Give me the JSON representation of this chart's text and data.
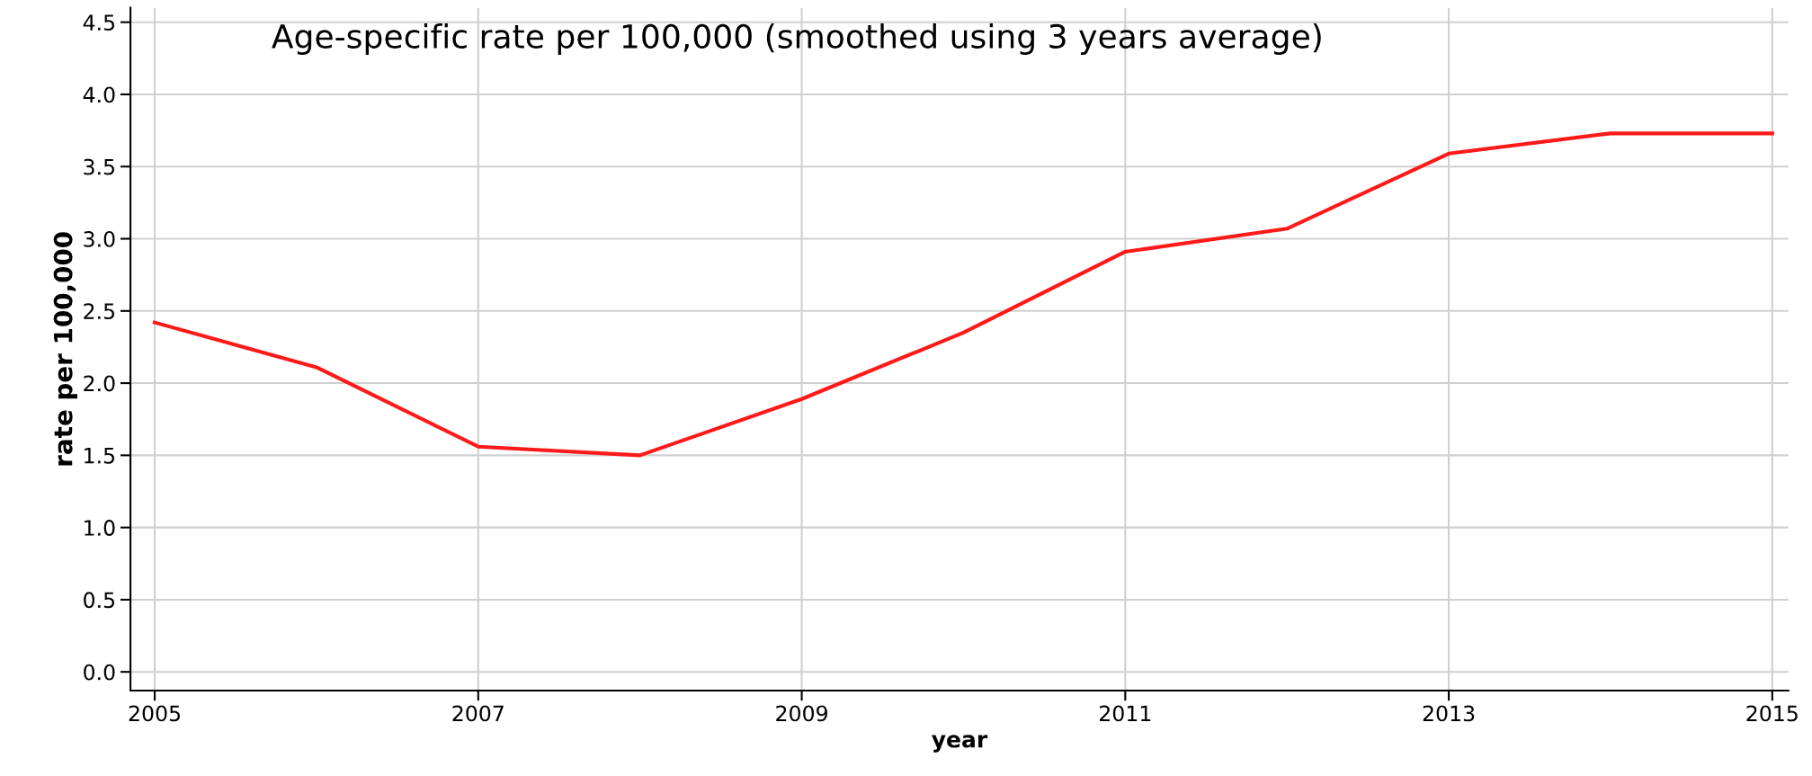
{
  "chart_data": {
    "type": "line",
    "title": "Age-specific rate per 100,000 (smoothed using 3 years average)",
    "xlabel": "year",
    "ylabel": "rate per 100,000",
    "x": [
      2005,
      2006,
      2007,
      2008,
      2009,
      2010,
      2011,
      2012,
      2013,
      2014,
      2015
    ],
    "series": [
      {
        "color": "#ff1a1a",
        "values": [
          2.42,
          2.11,
          1.56,
          1.5,
          1.89,
          2.35,
          2.91,
          3.07,
          3.59,
          3.73,
          3.73
        ]
      }
    ],
    "xlim": [
      2004.85,
      2015.1
    ],
    "xticks": [
      2005,
      2007,
      2009,
      2011,
      2013,
      2015
    ],
    "ylim": [
      -0.13,
      4.6
    ],
    "yticks": [
      {
        "value": 0,
        "label": "0.0"
      },
      {
        "value": 0.5,
        "label": "0.5"
      },
      {
        "value": 1,
        "label": "1.0"
      },
      {
        "value": 1.5,
        "label": "1.5"
      },
      {
        "value": 2,
        "label": "2.0"
      },
      {
        "value": 2.5,
        "label": "2.5"
      },
      {
        "value": 3,
        "label": "3.0"
      },
      {
        "value": 3.5,
        "label": "3.5"
      },
      {
        "value": 4,
        "label": "4.0"
      },
      {
        "value": 4.5,
        "label": "4.5"
      }
    ],
    "grid": true,
    "marker": "none",
    "line_style": "solid"
  }
}
